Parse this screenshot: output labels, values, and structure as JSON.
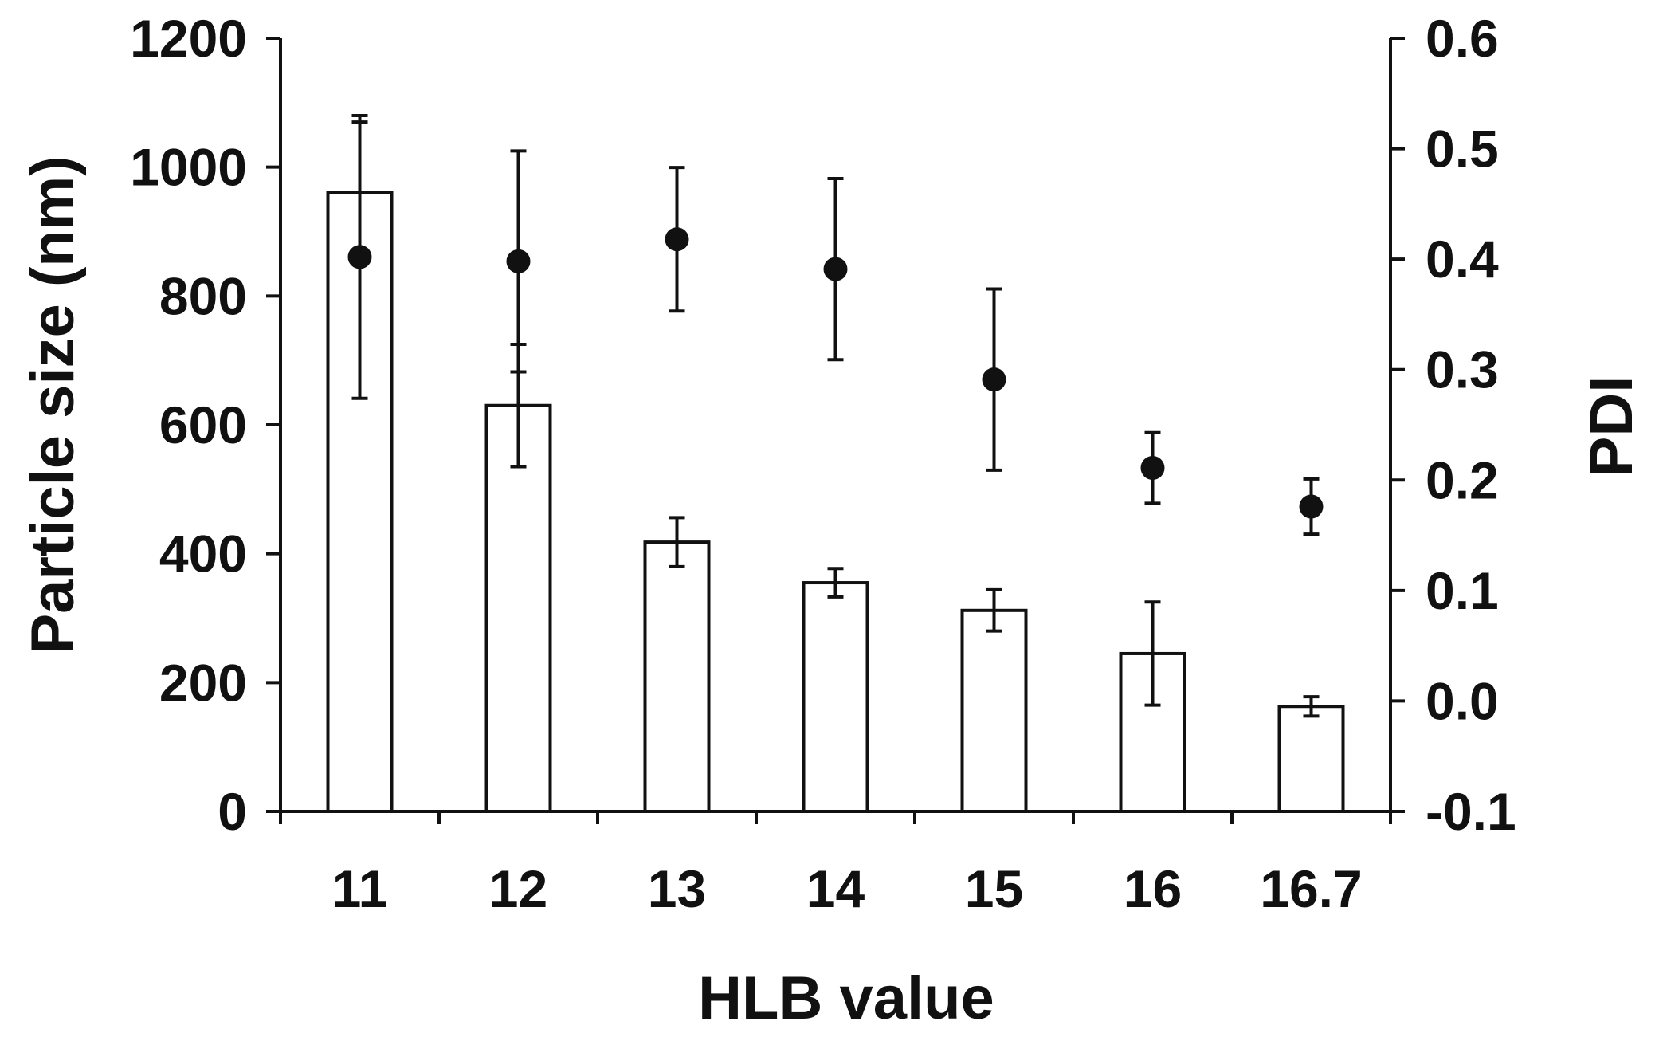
{
  "chart_data": {
    "type": "bar",
    "title": "",
    "xlabel": "HLB value",
    "ylabel": "Particle size (nm)",
    "y2label": "PDI",
    "categories": [
      "11",
      "12",
      "13",
      "14",
      "15",
      "16",
      "16.7"
    ],
    "ylim": [
      0,
      1200
    ],
    "y_ticks": [
      "0",
      "200",
      "400",
      "600",
      "800",
      "1000",
      "1200"
    ],
    "y2lim": [
      -0.1,
      0.6
    ],
    "y2_ticks": [
      "-0.1",
      "0.0",
      "0.1",
      "0.2",
      "0.3",
      "0.4",
      "0.5",
      "0.6"
    ],
    "grid": false,
    "series": [
      {
        "type": "bar",
        "axis": "left",
        "values": [
          960,
          630,
          418,
          355,
          312,
          245,
          163
        ],
        "error": [
          110,
          95,
          38,
          22,
          32,
          80,
          15
        ],
        "color": "#ffffff"
      },
      {
        "type": "scatter",
        "axis": "right",
        "values": [
          0.402,
          0.398,
          0.418,
          0.391,
          0.291,
          0.211,
          0.176
        ],
        "error": [
          0.128,
          0.1,
          0.065,
          0.082,
          0.082,
          0.032,
          0.025
        ],
        "color": "#111111"
      }
    ]
  }
}
